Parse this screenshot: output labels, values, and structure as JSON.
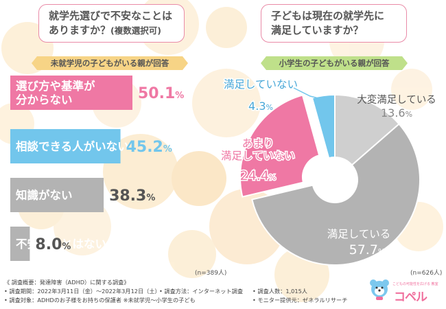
{
  "left": {
    "question_line1": "就学先選びで不安なことは",
    "question_line2_main": "ありますか？",
    "question_line2_small": "(複数選択可)",
    "banner": "未就学児の子どもがいる親が回答",
    "n_label": "(n=389人)"
  },
  "right": {
    "question_line1": "子どもは現在の就学先に",
    "question_line2": "満足していますか？",
    "banner": "小学生の子どもがいる親が回答",
    "n_label": "(n=626人)"
  },
  "footer": {
    "line1": "《 調査概要：発達障害（ADHD）に関する調査》",
    "line2a": "• 調査期間：2022年3月11日（金）～2022年3月12日（土）",
    "line2b": "• 調査方法：インターネット調査",
    "line2c": "• 調査人数：1,015人",
    "line3a": "• 調査対象：ADHDのお子様をお持ちの保護者 ※未就学児～小学生の子ども",
    "line3b": "• モニター提供元：ゼネラルリサーチ"
  },
  "logo": {
    "text": "コペル",
    "sub": "こどもの可能性を広げる 教室"
  },
  "colors": {
    "pink": "#ef78a4",
    "blue": "#72c6ec",
    "gray": "#b3b3b3",
    "lightgray": "#cfcfcf"
  },
  "chart_data": [
    {
      "type": "bar",
      "orientation": "horizontal",
      "title": "就学先選びで不安なことはありますか？(複数選択可)",
      "unit": "%",
      "categories": [
        "選び方や基準が分からない",
        "相談できる人がいない",
        "知識がない",
        "不安なことはない"
      ],
      "label_lines": [
        [
          "選び方や基準が",
          "分からない"
        ],
        [
          "相談できる人がいない"
        ],
        [
          "知識がない"
        ],
        [
          "不安なことはない"
        ]
      ],
      "values": [
        50.1,
        45.2,
        38.3,
        8.0
      ],
      "colors": [
        "#ef78a4",
        "#72c6ec",
        "#b3b3b3",
        "#b3b3b3"
      ],
      "value_colors": [
        "#ef78a4",
        "#72c6ec",
        "#555555",
        "#555555"
      ],
      "xlim": [
        0,
        50.1
      ]
    },
    {
      "type": "pie",
      "donut": true,
      "title": "子どもは現在の就学先に満足していますか？",
      "unit": "%",
      "categories": [
        "大変満足している",
        "満足している",
        "あまり満足していない",
        "満足していない"
      ],
      "label_lines": [
        [
          "大変満足している"
        ],
        [
          "満足している"
        ],
        [
          "あまり",
          "満足していない"
        ],
        [
          "満足していない"
        ]
      ],
      "values": [
        13.6,
        57.7,
        24.4,
        4.3
      ],
      "colors": [
        "#cfcfcf",
        "#b3b3b3",
        "#ef78a4",
        "#72c6ec"
      ],
      "label_colors": [
        "#555555",
        "#ffffff",
        "#ef78a4",
        "#4aa8d8"
      ],
      "value_colors": [
        "#888888",
        "#ffffff",
        "#ef78a4",
        "#4aa8d8"
      ]
    }
  ]
}
